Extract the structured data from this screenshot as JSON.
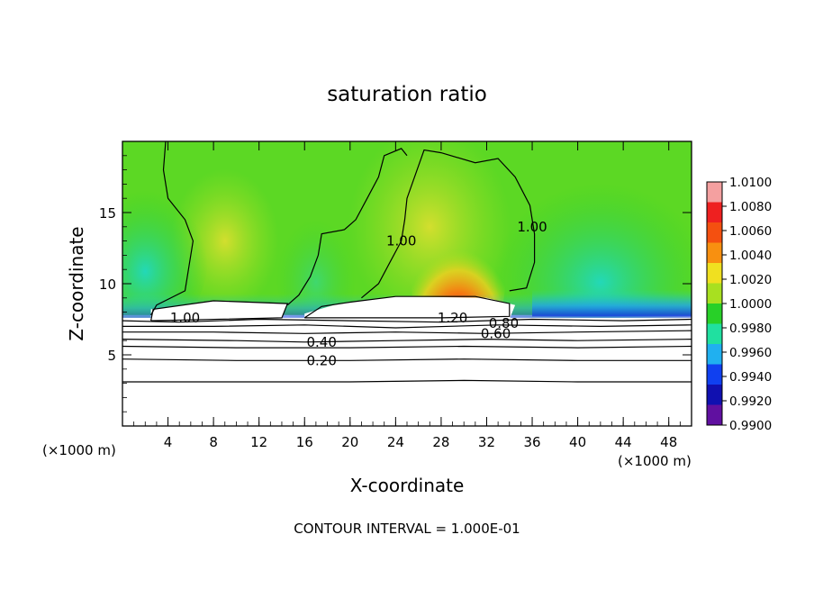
{
  "chart_data": {
    "type": "heatmap",
    "title": "saturation ratio",
    "xlabel": "X-coordinate",
    "ylabel": "Z-coordinate",
    "x_unit_left": "(×1000 m)",
    "x_unit_right": "(×1000 m)",
    "xlim": [
      0,
      50
    ],
    "ylim": [
      0,
      20
    ],
    "x_ticks": [
      4,
      8,
      12,
      16,
      20,
      24,
      28,
      32,
      36,
      40,
      44,
      48
    ],
    "y_ticks": [
      5,
      10,
      15
    ],
    "footer": "CONTOUR INTERVAL = 1.000E-01",
    "colorbar": {
      "levels": [
        "1.0100",
        "1.0080",
        "1.0060",
        "1.0040",
        "1.0020",
        "1.0000",
        "0.9980",
        "0.9960",
        "0.9940",
        "0.9920",
        "0.9900"
      ],
      "colors": [
        "#f4a0a0",
        "#ee2020",
        "#f45010",
        "#f89010",
        "#f0e020",
        "#a8e020",
        "#28d028",
        "#20e0a0",
        "#20b0f0",
        "#1040f0",
        "#1010b0",
        "#6010a0"
      ]
    },
    "contour_labels": [
      {
        "text": "1.00",
        "x": 5.5,
        "y": 7.6
      },
      {
        "text": "1.00",
        "x": 24.5,
        "y": 13
      },
      {
        "text": "1.00",
        "x": 36,
        "y": 14
      },
      {
        "text": "1.20",
        "x": 29,
        "y": 7.6
      },
      {
        "text": "0.80",
        "x": 33.5,
        "y": 7.2
      },
      {
        "text": "0.60",
        "x": 32.8,
        "y": 6.5
      },
      {
        "text": "0.40",
        "x": 17.5,
        "y": 5.9
      },
      {
        "text": "0.20",
        "x": 17.5,
        "y": 4.6
      }
    ]
  }
}
